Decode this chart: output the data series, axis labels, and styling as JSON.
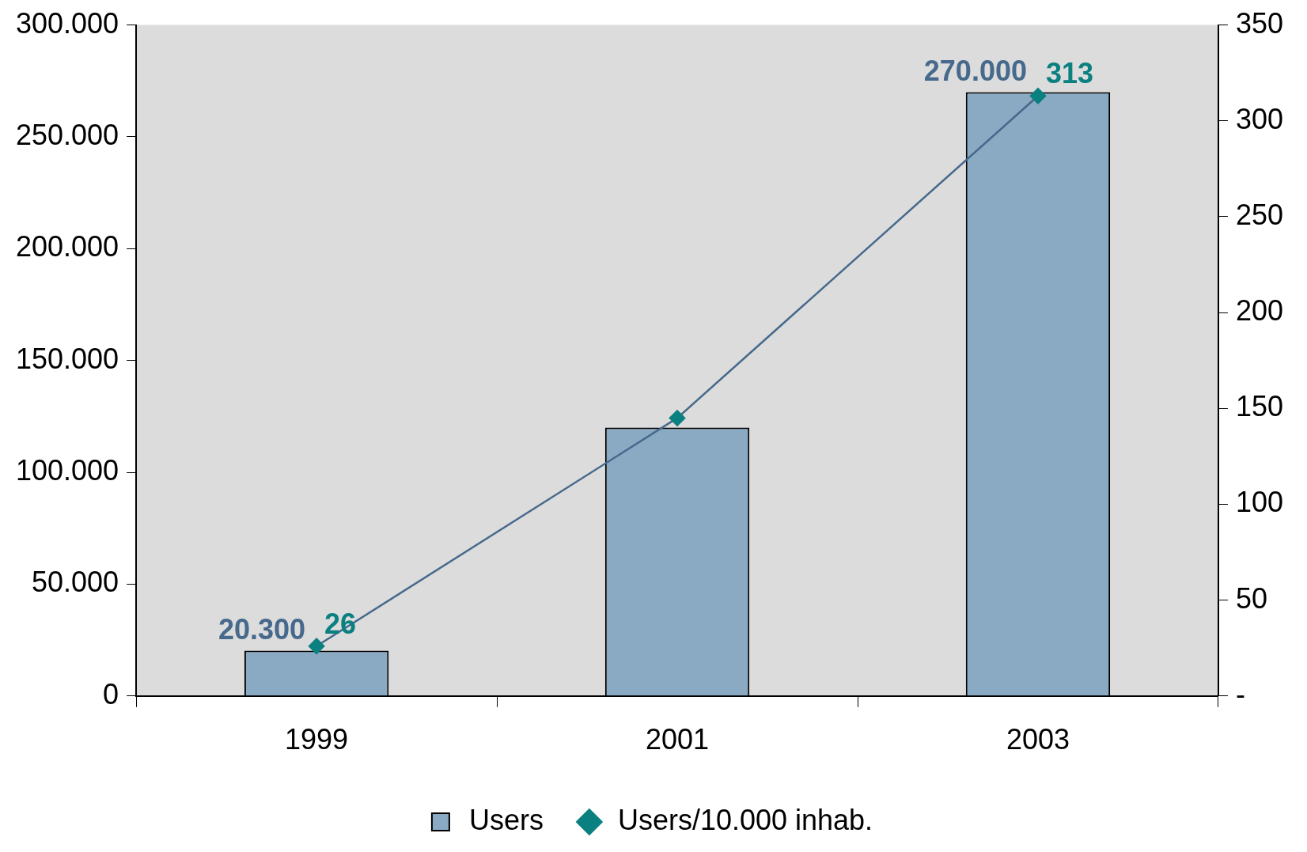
{
  "chart_data": {
    "type": "bar",
    "categories": [
      "1999",
      "2001",
      "2003"
    ],
    "series": [
      {
        "name": "Users",
        "color": "#8aaac4",
        "values": [
          20300,
          120000,
          270000
        ],
        "value_labels": [
          "20.300",
          null,
          "270.000"
        ]
      },
      {
        "name": "Users/10.000 inhab.",
        "type": "line",
        "axis": "y2",
        "color": "#46698c",
        "marker": "diamond",
        "values": [
          26,
          145,
          313
        ],
        "value_labels": [
          "26",
          null,
          "313"
        ]
      }
    ],
    "ylim": [
      0,
      300000
    ],
    "yticks": [
      0,
      {
        "value": 50000,
        "label": "50.000"
      },
      {
        "value": 100000,
        "label": "100.000"
      },
      {
        "value": 150000,
        "label": "150.000"
      },
      {
        "value": 200000,
        "label": "200.000"
      },
      {
        "value": 250000,
        "label": "250.000"
      },
      {
        "value": 300000,
        "label": "300.000"
      }
    ],
    "y2lim": [
      0,
      350
    ],
    "y2ticks": [
      {
        "value": 0,
        "label": "-"
      },
      50,
      100,
      150,
      200,
      250,
      300,
      350
    ],
    "grid": false,
    "legend": "bottom"
  }
}
